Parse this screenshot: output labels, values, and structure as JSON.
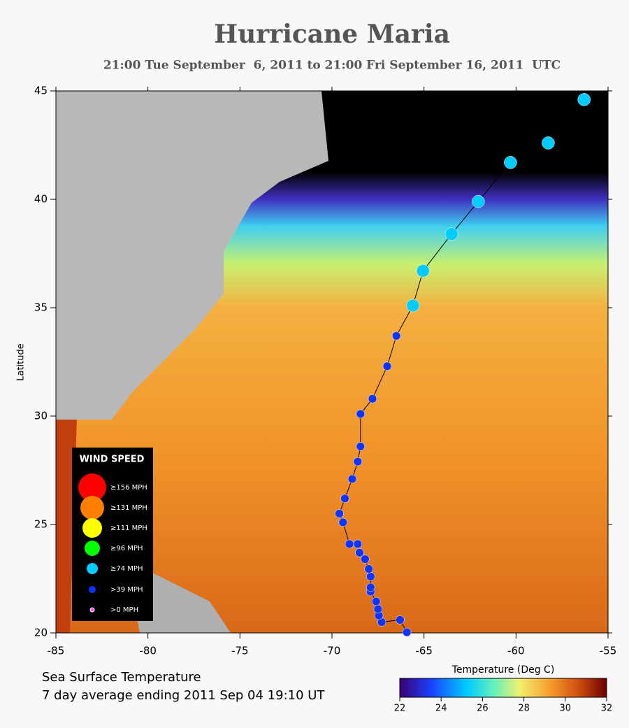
{
  "title": "Hurricane Maria",
  "subtitle": "21:00 Tue September  6, 2011 to 21:00 Fri September 16, 2011  UTC",
  "map": {
    "xlim": [
      -85,
      -55
    ],
    "ylim": [
      20,
      45
    ],
    "xticks": [
      -85,
      -80,
      -75,
      -70,
      -65,
      -60,
      -55
    ],
    "yticks": [
      20,
      25,
      30,
      35,
      40,
      45
    ],
    "ylabel": "Latitude"
  },
  "track": {
    "lon": [
      -65.93,
      -66.3,
      -67.3,
      -67.45,
      -67.5,
      -67.6,
      -67.9,
      -67.9,
      -67.9,
      -68.0,
      -68.2,
      -68.5,
      -68.6,
      -69.05,
      -69.4,
      -69.6,
      -69.3,
      -68.9,
      -68.6,
      -68.45,
      -68.45,
      -67.8,
      -67.0,
      -66.5,
      -65.6,
      -65.05,
      -63.5,
      -62.05,
      -60.3,
      -58.25,
      -56.3
    ],
    "lat": [
      20.03,
      20.6,
      20.5,
      20.8,
      21.1,
      21.45,
      21.9,
      22.1,
      22.6,
      22.95,
      23.4,
      23.7,
      24.1,
      24.1,
      25.1,
      25.5,
      26.2,
      27.1,
      27.9,
      28.6,
      30.1,
      30.8,
      32.3,
      33.7,
      35.1,
      36.7,
      38.4,
      39.9,
      41.7,
      42.6,
      44.6
    ],
    "wind_class": [
      5,
      5,
      5,
      5,
      5,
      5,
      5,
      5,
      5,
      5,
      5,
      5,
      5,
      5,
      5,
      5,
      5,
      5,
      5,
      5,
      5,
      5,
      5,
      5,
      4,
      4,
      4,
      4,
      4,
      4,
      4
    ]
  },
  "legend": {
    "title": "WIND SPEED",
    "items": [
      {
        "label": "≥156 MPH",
        "color": "#ff0000"
      },
      {
        "label": "≥131 MPH",
        "color": "#ff8000"
      },
      {
        "label": "≥111 MPH",
        "color": "#ffff00"
      },
      {
        "label": "≥96 MPH",
        "color": "#00ff00"
      },
      {
        "label": "≥74 MPH",
        "color": "#00ccff"
      },
      {
        "label": ">39 MPH",
        "color": "#1133ff"
      },
      {
        "label": ">0 MPH",
        "color": "#ff44ff"
      }
    ]
  },
  "caption": [
    "Sea Surface Temperature",
    "7 day average ending 2011 Sep 04 19:10 UT"
  ],
  "colorbar": {
    "label": "Temperature (Deg C)",
    "lim": [
      22,
      32
    ],
    "ticks": [
      22,
      24,
      26,
      28,
      30,
      32
    ]
  }
}
